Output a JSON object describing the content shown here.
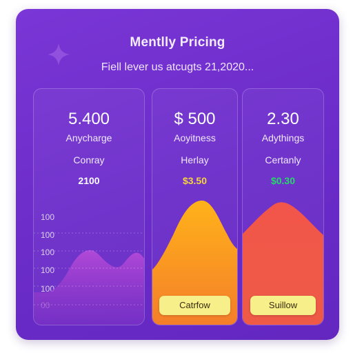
{
  "header": {
    "title": "Mentlly Pricing",
    "subtitle": "Fiell lever us atcugts 21,2020..."
  },
  "plans": [
    {
      "price": "5.400",
      "desc": "Anycharge",
      "name": "Conray",
      "sub": "2100",
      "sub_color": "#ffffff",
      "y_ticks": [
        "100",
        "100",
        "100",
        "100",
        "100",
        "00"
      ],
      "chart_color": "#a53fd0"
    },
    {
      "price": "$ 500",
      "desc": "Aoyitness",
      "name": "Herlay",
      "sub": "$3.50",
      "sub_color": "#f7d43c",
      "button": "Catrfow",
      "chart_color": "#f7a320"
    },
    {
      "price": "2.30",
      "desc": "Adythings",
      "name": "Certanly",
      "sub": "$0.30",
      "sub_color": "#27d86a",
      "button": "Suillow",
      "chart_color": "#f0524a"
    }
  ],
  "colors": {
    "card_bg": "#6b2cc9",
    "button_bg": "#f7ef8a"
  },
  "icons": [
    "sparkle-icon"
  ]
}
